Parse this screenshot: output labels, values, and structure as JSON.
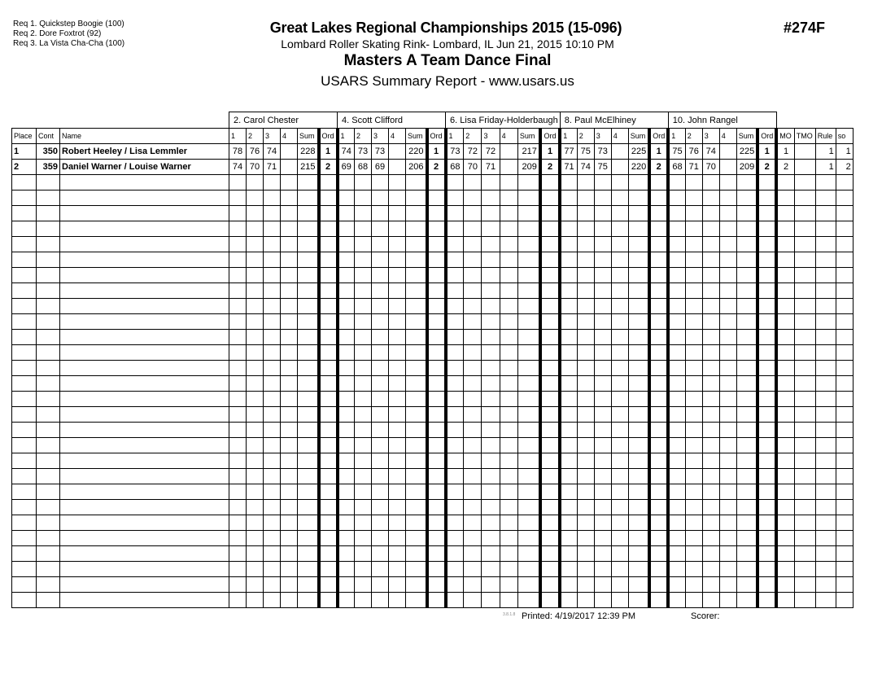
{
  "requirements": [
    "Req  1.  Quickstep Boogie (100)",
    "Req  2.  Dore Foxtrot (92)",
    "Req  3.  La Vista Cha-Cha (100)"
  ],
  "title": "Great Lakes Regional Championships 2015 (15-096)",
  "event_number": "#274F",
  "location_line": "Lombard Roller Skating Rink- Lombard, IL  Jun 21, 2015  10:10 PM",
  "event_name": "Masters A Team Dance Final",
  "report_name": "USARS Summary Report - www.usars.us",
  "columns": {
    "place": "Place",
    "cont": "Cont",
    "name": "Name",
    "judge_cols": [
      "1",
      "2",
      "3",
      "4",
      "Sum",
      "Ord"
    ],
    "extra": [
      "MO",
      "TMO",
      "Rule",
      "so"
    ]
  },
  "judges": [
    "2.  Carol Chester",
    "4.  Scott Clifford",
    "6.  Lisa Friday-Holderbaugh",
    "8.  Paul McElhiney",
    "10.  John Rangel"
  ],
  "rows": [
    {
      "place": "1",
      "cont": "350",
      "name": "Robert Heeley / Lisa Lemmler",
      "scores": [
        [
          "78",
          "76",
          "74",
          "",
          "228",
          "1"
        ],
        [
          "74",
          "73",
          "73",
          "",
          "220",
          "1"
        ],
        [
          "73",
          "72",
          "72",
          "",
          "217",
          "1"
        ],
        [
          "77",
          "75",
          "73",
          "",
          "225",
          "1"
        ],
        [
          "75",
          "76",
          "74",
          "",
          "225",
          "1"
        ]
      ],
      "extra": [
        "1",
        "",
        "1",
        "1"
      ]
    },
    {
      "place": "2",
      "cont": "359",
      "name": "Daniel Warner / Louise Warner",
      "scores": [
        [
          "74",
          "70",
          "71",
          "",
          "215",
          "2"
        ],
        [
          "69",
          "68",
          "69",
          "",
          "206",
          "2"
        ],
        [
          "68",
          "70",
          "71",
          "",
          "209",
          "2"
        ],
        [
          "71",
          "74",
          "75",
          "",
          "220",
          "2"
        ],
        [
          "68",
          "71",
          "70",
          "",
          "209",
          "2"
        ]
      ],
      "extra": [
        "2",
        "",
        "1",
        "2"
      ]
    }
  ],
  "footer": {
    "version": "3.8.1.8",
    "printed": "Printed:  4/19/2017  12:39 PM",
    "scorer": "Scorer:"
  }
}
